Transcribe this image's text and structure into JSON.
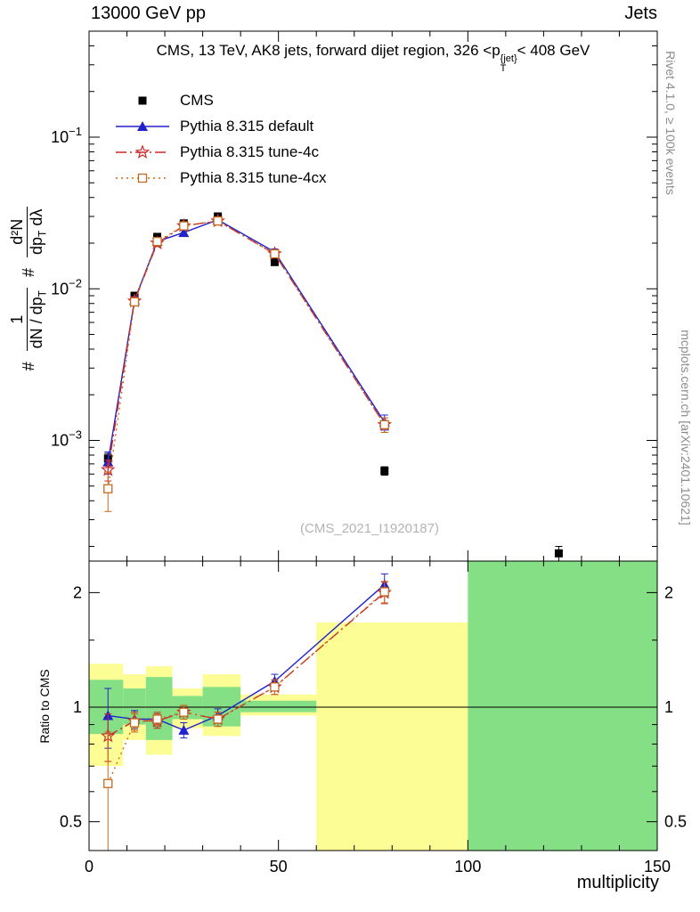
{
  "header": {
    "left": "13000 GeV pp",
    "right": "Jets"
  },
  "title": {
    "prefix": "CMS, 13 TeV, AK8 jets, forward dijet region, 326 <p",
    "sup": "{jet}",
    "sub": "T",
    "suffix": "< 408 GeV"
  },
  "side_notes": {
    "rivet": "Rivet 4.1.0, ≥ 100k events",
    "mcplots": "mcplots.cern.ch [arXiv:2401.10621]"
  },
  "watermark": "(CMS_2021_I1920187)",
  "ylabel_main": {
    "hash1": "#",
    "frac1_num": "1",
    "frac1_den_pre": "dN / dp",
    "frac1_den_sub": "T",
    "hash2": "#",
    "frac2_num": "d²N",
    "frac2_den_pre": "dp",
    "frac2_den_sub": "T",
    "frac2_den_post": " dλ"
  },
  "ratio_ylabel": "Ratio to CMS",
  "xlabel": "multiplicity",
  "chart_data": [
    {
      "type": "line",
      "title": "CMS, 13 TeV, AK8 jets, forward dijet region, 326 < pT{jet} < 408 GeV",
      "xlabel": "multiplicity",
      "ylabel": "# 1/(dN/dpT) # d²N/(dpT dλ)",
      "yscale": "log",
      "xlim": [
        0,
        150
      ],
      "ylim": [
        0.00016,
        0.5
      ],
      "yticks": [
        0.001,
        0.01,
        0.1
      ],
      "legend_position": "upper-left",
      "grid": false,
      "series": [
        {
          "name": "CMS",
          "color": "#000000",
          "marker": "square",
          "line": "none",
          "x": [
            5,
            12,
            18,
            25,
            34,
            49,
            78,
            124
          ],
          "values": [
            0.00076,
            0.009,
            0.022,
            0.027,
            0.03,
            0.015,
            0.00063,
            0.00018
          ],
          "yerr": [
            6e-05,
            0.0003,
            0.0006,
            0.0007,
            0.0008,
            0.0005,
            4e-05,
            2e-05
          ]
        },
        {
          "name": "Pythia 8.315 default",
          "color": "#2222cc",
          "marker": "triangle",
          "line": "solid",
          "x": [
            5,
            12,
            18,
            25,
            34,
            49,
            78
          ],
          "values": [
            0.00072,
            0.0084,
            0.0205,
            0.0235,
            0.0285,
            0.0175,
            0.00132
          ],
          "yerr": [
            0.00012,
            0.0005,
            0.001,
            0.001,
            0.0012,
            0.0008,
            0.00015
          ]
        },
        {
          "name": "Pythia 8.315 tune-4c",
          "color": "#cc2a2a",
          "marker": "star",
          "line": "dashdot",
          "x": [
            5,
            12,
            18,
            25,
            34,
            49,
            78
          ],
          "values": [
            0.00064,
            0.0083,
            0.02,
            0.026,
            0.028,
            0.017,
            0.00127
          ],
          "yerr": [
            0.0001,
            0.0005,
            0.001,
            0.0011,
            0.0012,
            0.0008,
            0.00014
          ]
        },
        {
          "name": "Pythia 8.315 tune-4cx",
          "color": "#c46a1e",
          "marker": "osquare",
          "line": "dotted",
          "x": [
            5,
            12,
            18,
            25,
            34,
            49,
            78
          ],
          "values": [
            0.00048,
            0.0082,
            0.0205,
            0.026,
            0.028,
            0.017,
            0.00127
          ],
          "yerr": [
            0.00014,
            0.0005,
            0.001,
            0.0011,
            0.0012,
            0.0008,
            0.00014
          ]
        }
      ]
    },
    {
      "type": "ratio",
      "ylabel": "Ratio to CMS",
      "yscale": "log",
      "xlim": [
        0,
        150
      ],
      "ylim": [
        0.42,
        2.42
      ],
      "yticks": [
        0.5,
        1,
        2
      ],
      "xticks": [
        0,
        50,
        100,
        150
      ],
      "band_colors": {
        "yellow": "#fdfd96",
        "green": "#85e085"
      },
      "bands": [
        {
          "x0": 0,
          "x1": 9,
          "yellow": [
            0.7,
            1.3
          ],
          "green": [
            0.85,
            1.18
          ]
        },
        {
          "x0": 9,
          "x1": 15,
          "yellow": [
            0.82,
            1.22
          ],
          "green": [
            0.9,
            1.12
          ]
        },
        {
          "x0": 15,
          "x1": 22,
          "yellow": [
            0.75,
            1.28
          ],
          "green": [
            0.82,
            1.2
          ]
        },
        {
          "x0": 22,
          "x1": 30,
          "yellow": [
            0.88,
            1.12
          ],
          "green": [
            0.93,
            1.07
          ]
        },
        {
          "x0": 30,
          "x1": 40,
          "yellow": [
            0.84,
            1.22
          ],
          "green": [
            0.89,
            1.13
          ]
        },
        {
          "x0": 40,
          "x1": 60,
          "yellow": [
            0.95,
            1.08
          ],
          "green": [
            0.97,
            1.04
          ]
        },
        {
          "x0": 60,
          "x1": 100,
          "yellow": [
            0.42,
            1.67
          ]
        },
        {
          "x0": 100,
          "x1": 150,
          "green": [
            0.42,
            2.42
          ]
        }
      ],
      "series": [
        {
          "name": "Pythia 8.315 default",
          "color": "#2222cc",
          "marker": "triangle",
          "line": "solid",
          "x": [
            5,
            12,
            18,
            25,
            34,
            49,
            78
          ],
          "values": [
            0.95,
            0.93,
            0.93,
            0.87,
            0.95,
            1.17,
            2.1
          ],
          "yerr": [
            0.17,
            0.05,
            0.04,
            0.04,
            0.04,
            0.05,
            0.14
          ]
        },
        {
          "name": "Pythia 8.315 tune-4c",
          "color": "#cc2a2a",
          "marker": "star",
          "line": "dashdot",
          "x": [
            5,
            12,
            18,
            25,
            34,
            49,
            78
          ],
          "values": [
            0.84,
            0.92,
            0.92,
            0.97,
            0.93,
            1.13,
            2.0
          ],
          "yerr": [
            0.12,
            0.05,
            0.04,
            0.04,
            0.04,
            0.05,
            0.13
          ]
        },
        {
          "name": "Pythia 8.315 tune-4cx",
          "color": "#c46a1e",
          "marker": "osquare",
          "line": "dotted",
          "x": [
            5,
            12,
            18,
            25,
            34,
            49,
            78
          ],
          "values": [
            0.63,
            0.91,
            0.93,
            0.97,
            0.93,
            1.13,
            2.01
          ],
          "yerr": [
            0.23,
            0.05,
            0.04,
            0.04,
            0.04,
            0.05,
            0.13
          ]
        }
      ]
    }
  ]
}
